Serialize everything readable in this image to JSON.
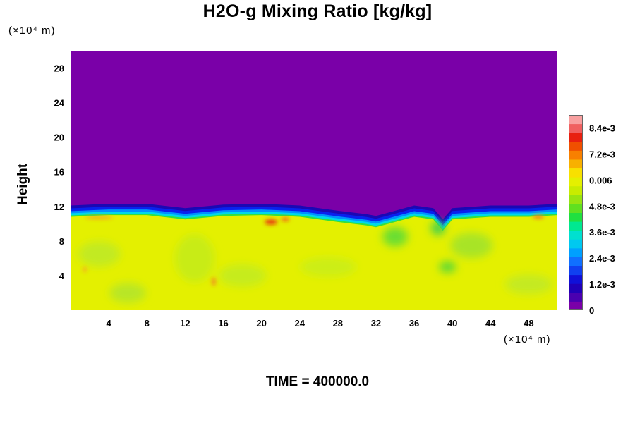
{
  "header": {
    "title": "H2O-g Mixing Ratio [kg/kg]"
  },
  "axes": {
    "y_unit_label": "(×10⁴ m)",
    "x_unit_label": "(×10⁴ m)",
    "ylabel": "Height"
  },
  "footer": {
    "time_label": "TIME = 400000.0"
  },
  "colors": {
    "background_purple": "#7a00a8",
    "moist_yellow": "#e4f000",
    "boundary_blue": "#1020e0"
  },
  "chart_data": {
    "type": "heatmap",
    "title": "H2O-g Mixing Ratio [kg/kg]",
    "xlabel": "",
    "ylabel": "Height",
    "x_unit": "(×10⁴ m)",
    "y_unit": "(×10⁴ m)",
    "xlim": [
      0,
      51
    ],
    "ylim": [
      0,
      30
    ],
    "x_ticks": [
      "4",
      "8",
      "12",
      "16",
      "20",
      "24",
      "28",
      "32",
      "36",
      "40",
      "44",
      "48"
    ],
    "y_ticks": [
      "4",
      "8",
      "12",
      "16",
      "20",
      "24",
      "28"
    ],
    "colorbar": {
      "range": [
        0,
        0.009
      ],
      "tick_labels": [
        "0",
        "1.2e-3",
        "2.4e-3",
        "3.6e-3",
        "4.8e-3",
        "0.006",
        "7.2e-3",
        "8.4e-3"
      ],
      "tick_values": [
        0,
        0.0012,
        0.0024,
        0.0036,
        0.0048,
        0.006,
        0.0072,
        0.0084
      ]
    },
    "moist_layer_top": {
      "x": [
        0,
        4,
        8,
        12,
        16,
        20,
        24,
        28,
        31,
        32,
        33,
        36,
        38,
        39,
        40,
        44,
        48,
        51
      ],
      "y": [
        10.8,
        11.0,
        11.0,
        10.5,
        10.9,
        11.0,
        10.8,
        10.2,
        9.8,
        9.6,
        9.9,
        10.8,
        10.5,
        9.2,
        10.5,
        10.8,
        10.8,
        11.0
      ]
    },
    "annotation": "TIME = 400000.0"
  }
}
